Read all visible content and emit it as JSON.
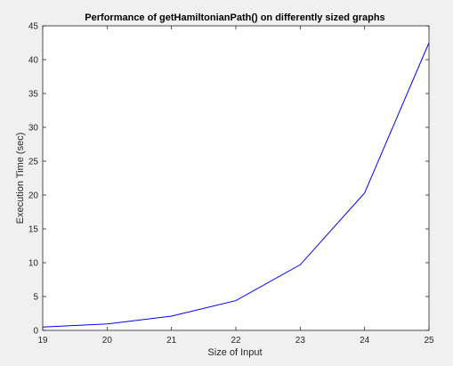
{
  "chart_data": {
    "type": "line",
    "title": "Performance of getHamiltonianPath() on differently sized graphs",
    "xlabel": "Size of Input",
    "ylabel": "Execution Time (sec)",
    "xlim": [
      19,
      25
    ],
    "ylim": [
      0,
      45
    ],
    "xticks": [
      "19",
      "20",
      "21",
      "22",
      "23",
      "24",
      "25"
    ],
    "yticks": [
      "0",
      "5",
      "10",
      "15",
      "20",
      "25",
      "30",
      "35",
      "40",
      "45"
    ],
    "grid": false,
    "series": [
      {
        "x": [
          19,
          20,
          21,
          22,
          23,
          24,
          25
        ],
        "y": [
          0.5,
          0.95,
          2.1,
          4.4,
          9.7,
          20.3,
          42.5
        ],
        "color": "#0000ff"
      }
    ]
  }
}
